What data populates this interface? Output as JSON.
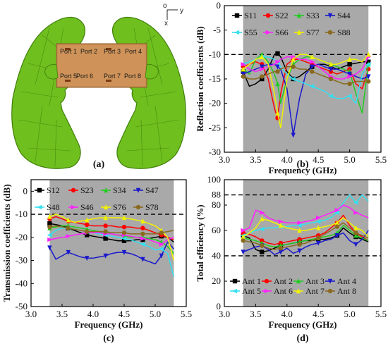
{
  "panel_a": {
    "label": "(a)",
    "ports": [
      "Port 1",
      "Port 2",
      "Port 3",
      "Port 4",
      "Port 5",
      "Port 6",
      "Port 7",
      "Port 8"
    ],
    "axes_labels": [
      "o",
      "y",
      "x"
    ]
  },
  "colors": {
    "S11": "#000000",
    "S22": "#ff0000",
    "S33": "#22cc22",
    "S44": "#1a1acc",
    "S55": "#33e0f0",
    "S66": "#ff22ff",
    "S77": "#f2f200",
    "S88": "#8a6a1f",
    "shade": "#a9a9a9",
    "hand": "#6fbf1e",
    "hand_edge": "#3f7e0c",
    "board": "#c98a4f"
  },
  "chart_data": [
    {
      "id": "b",
      "label": "(b)",
      "type": "line",
      "xlabel": "Frequency (GHz)",
      "ylabel": "Reflection coefficients (dB)",
      "xlim": [
        3.0,
        5.5
      ],
      "ylim": [
        -30,
        0
      ],
      "xticks": [
        3.0,
        3.5,
        4.0,
        4.5,
        5.0,
        5.5
      ],
      "xtick_labels": [
        "3.0",
        "3.5",
        "4.0",
        "4.5",
        "5.0",
        "5.5"
      ],
      "yticks": [
        -30,
        -25,
        -20,
        -15,
        -10,
        -5,
        0
      ],
      "ytick_labels": [
        "-30",
        "-25",
        "-20",
        "-15",
        "-10",
        "-5",
        "0"
      ],
      "shaded_band": [
        3.3,
        5.3
      ],
      "ref_line": -10,
      "legend": [
        "S11",
        "S22",
        "S33",
        "S44",
        "S55",
        "S66",
        "S77",
        "S88"
      ],
      "x": [
        3.3,
        3.4,
        3.5,
        3.6,
        3.7,
        3.8,
        3.85,
        3.9,
        4.0,
        4.1,
        4.2,
        4.3,
        4.4,
        4.5,
        4.6,
        4.7,
        4.8,
        4.9,
        5.0,
        5.1,
        5.2,
        5.3
      ],
      "series": [
        {
          "name": "S11",
          "values": [
            -13.5,
            -16.5,
            -16.0,
            -15.0,
            -13.0,
            -10.0,
            -9.8,
            -10.5,
            -13.5,
            -15.0,
            -14.5,
            -13.5,
            -12.5,
            -12.0,
            -12.0,
            -12.5,
            -13.0,
            -12.5,
            -12.0,
            -11.8,
            -11.5,
            -11.5
          ]
        },
        {
          "name": "S22",
          "values": [
            -12.5,
            -12.0,
            -11.5,
            -12.0,
            -15.0,
            -21.0,
            -23.0,
            -18.0,
            -12.0,
            -11.0,
            -11.0,
            -11.5,
            -12.0,
            -12.5,
            -13.0,
            -13.5,
            -14.0,
            -13.5,
            -13.0,
            -16.0,
            -17.0,
            -13.0
          ]
        },
        {
          "name": "S33",
          "values": [
            -13.0,
            -14.0,
            -11.0,
            -10.0,
            -11.5,
            -14.0,
            -16.0,
            -20.0,
            -15.0,
            -12.0,
            -11.0,
            -10.5,
            -10.5,
            -11.0,
            -11.5,
            -12.0,
            -12.5,
            -13.0,
            -13.5,
            -18.0,
            -22.0,
            -12.0
          ]
        },
        {
          "name": "S44",
          "values": [
            -14.0,
            -13.5,
            -13.0,
            -12.5,
            -12.0,
            -12.0,
            -12.5,
            -13.0,
            -17.0,
            -26.5,
            -19.0,
            -14.0,
            -12.5,
            -12.0,
            -12.5,
            -13.0,
            -13.0,
            -13.5,
            -14.0,
            -14.5,
            -15.0,
            -14.5
          ]
        },
        {
          "name": "S55",
          "values": [
            -12.0,
            -11.5,
            -11.0,
            -10.5,
            -10.5,
            -11.0,
            -11.5,
            -12.5,
            -14.0,
            -15.0,
            -15.5,
            -16.0,
            -16.5,
            -17.0,
            -17.5,
            -18.5,
            -19.0,
            -19.0,
            -18.5,
            -20.0,
            -14.0,
            -12.0
          ]
        },
        {
          "name": "S66",
          "values": [
            -12.0,
            -13.0,
            -13.5,
            -13.0,
            -12.5,
            -12.0,
            -11.5,
            -11.0,
            -10.5,
            -10.5,
            -11.0,
            -11.0,
            -11.5,
            -12.5,
            -13.5,
            -14.5,
            -15.0,
            -15.0,
            -14.5,
            -14.0,
            -13.0,
            -10.5
          ]
        },
        {
          "name": "S77",
          "values": [
            -13.0,
            -12.0,
            -11.0,
            -10.5,
            -12.0,
            -18.0,
            -22.0,
            -25.0,
            -15.0,
            -11.0,
            -10.0,
            -10.0,
            -10.5,
            -11.0,
            -11.5,
            -12.0,
            -12.0,
            -11.5,
            -11.0,
            -11.0,
            -11.5,
            -10.0
          ]
        },
        {
          "name": "S88",
          "values": [
            -14.5,
            -15.0,
            -15.0,
            -14.5,
            -14.0,
            -13.5,
            -13.5,
            -13.0,
            -12.5,
            -12.5,
            -13.0,
            -13.0,
            -13.5,
            -14.0,
            -14.5,
            -15.0,
            -15.5,
            -16.0,
            -16.0,
            -15.5,
            -15.5,
            -15.5
          ]
        }
      ]
    },
    {
      "id": "c",
      "label": "(c)",
      "type": "line",
      "xlabel": "Frequency (GHz)",
      "ylabel": "Transmission coefficients (dB)",
      "xlim": [
        3.0,
        5.5
      ],
      "ylim": [
        -50,
        5
      ],
      "xticks": [
        3.0,
        3.5,
        4.0,
        4.5,
        5.0,
        5.5
      ],
      "xtick_labels": [
        "3.0",
        "3.5",
        "4.0",
        "4.5",
        "5.0",
        "5.5"
      ],
      "yticks": [
        -50,
        -40,
        -30,
        -20,
        -10,
        0
      ],
      "ytick_labels": [
        "-50",
        "-40",
        "-30",
        "-20",
        "-10",
        "0"
      ],
      "shaded_band": [
        3.3,
        5.3
      ],
      "ref_line": -10,
      "legend": [
        "S12",
        "S23",
        "S34",
        "S47",
        "S48",
        "S46",
        "S76",
        "S78"
      ],
      "x": [
        3.3,
        3.4,
        3.5,
        3.6,
        3.7,
        3.8,
        3.9,
        4.0,
        4.1,
        4.2,
        4.3,
        4.4,
        4.5,
        4.6,
        4.7,
        4.8,
        4.9,
        5.0,
        5.1,
        5.2,
        5.3
      ],
      "series": [
        {
          "name": "S12",
          "values": [
            -14.0,
            -14.5,
            -15.0,
            -16.0,
            -17.0,
            -18.0,
            -19.0,
            -19.5,
            -20.0,
            -20.5,
            -21.0,
            -21.5,
            -21.5,
            -21.5,
            -21.0,
            -21.0,
            -20.5,
            -20.0,
            -19.5,
            -20.0,
            -22.0
          ]
        },
        {
          "name": "S23",
          "values": [
            -12.0,
            -11.0,
            -12.0,
            -13.0,
            -13.5,
            -14.0,
            -14.5,
            -15.0,
            -15.0,
            -15.0,
            -15.0,
            -15.5,
            -15.5,
            -15.5,
            -16.0,
            -16.0,
            -17.0,
            -18.0,
            -19.0,
            -20.0,
            -21.0
          ]
        },
        {
          "name": "S34",
          "values": [
            -16.0,
            -15.5,
            -15.0,
            -15.0,
            -15.5,
            -16.0,
            -16.5,
            -17.0,
            -17.5,
            -18.0,
            -18.5,
            -19.0,
            -19.5,
            -20.0,
            -20.0,
            -20.0,
            -20.5,
            -21.0,
            -22.0,
            -24.0,
            -27.0
          ]
        },
        {
          "name": "S47",
          "values": [
            -24.5,
            -29.5,
            -28.0,
            -26.5,
            -27.5,
            -28.5,
            -29.0,
            -29.0,
            -28.5,
            -28.0,
            -27.0,
            -26.5,
            -26.5,
            -27.0,
            -28.0,
            -29.5,
            -30.5,
            -31.5,
            -28.0,
            -22.0,
            -25.0
          ]
        },
        {
          "name": "S48",
          "values": [
            -19.0,
            -17.0,
            -16.0,
            -16.0,
            -16.5,
            -17.0,
            -17.5,
            -18.0,
            -18.5,
            -19.0,
            -19.5,
            -20.0,
            -20.5,
            -21.0,
            -22.0,
            -23.0,
            -24.0,
            -25.5,
            -25.0,
            -27.0,
            -37.0
          ]
        },
        {
          "name": "S46",
          "values": [
            -21.0,
            -20.5,
            -20.0,
            -19.5,
            -19.0,
            -18.5,
            -18.0,
            -18.0,
            -18.0,
            -18.5,
            -18.5,
            -19.0,
            -19.0,
            -19.5,
            -20.0,
            -20.5,
            -21.0,
            -22.0,
            -23.0,
            -21.0,
            -20.0
          ]
        },
        {
          "name": "S76",
          "values": [
            -11.0,
            -10.0,
            -11.0,
            -12.5,
            -13.5,
            -13.0,
            -12.5,
            -12.0,
            -11.5,
            -11.5,
            -11.5,
            -11.5,
            -11.5,
            -12.0,
            -12.5,
            -13.0,
            -14.0,
            -15.0,
            -17.0,
            -20.0,
            -30.0
          ]
        },
        {
          "name": "S78",
          "values": [
            -15.5,
            -15.0,
            -15.5,
            -16.0,
            -16.5,
            -17.0,
            -17.5,
            -17.5,
            -17.5,
            -17.5,
            -18.0,
            -18.0,
            -18.0,
            -18.5,
            -18.5,
            -18.5,
            -18.5,
            -18.5,
            -18.0,
            -17.5,
            -17.0
          ]
        }
      ]
    },
    {
      "id": "d",
      "label": "(d)",
      "type": "line",
      "xlabel": "Frequency (GHz)",
      "ylabel": "Total efficiency (%)",
      "xlim": [
        3.0,
        5.5
      ],
      "ylim": [
        0,
        100
      ],
      "xticks": [
        3.0,
        3.5,
        4.0,
        4.5,
        5.0,
        5.5
      ],
      "xtick_labels": [
        "3.0",
        "3.5",
        "4.0",
        "4.5",
        "5.0",
        "5.5"
      ],
      "yticks": [
        0,
        20,
        40,
        60,
        80,
        88,
        100
      ],
      "ytick_labels": [
        "0",
        "20",
        "40",
        "60",
        "80",
        "88",
        "100"
      ],
      "shaded_band": [
        3.3,
        5.3
      ],
      "ref_lines": [
        88,
        40
      ],
      "legend": [
        "Ant 1",
        "Ant 2",
        "Ant 3",
        "Ant 4",
        "Ant 5",
        "Ant 6",
        "Ant 7",
        "Ant 8"
      ],
      "x": [
        3.3,
        3.4,
        3.5,
        3.6,
        3.7,
        3.8,
        3.9,
        4.0,
        4.1,
        4.2,
        4.3,
        4.4,
        4.5,
        4.6,
        4.7,
        4.8,
        4.9,
        5.0,
        5.1,
        5.2,
        5.3
      ],
      "series": [
        {
          "name": "Ant 1",
          "values": [
            56,
            54,
            45,
            43,
            44,
            46,
            48,
            49,
            50,
            51,
            52,
            52,
            53,
            53,
            54,
            56,
            62,
            58,
            55,
            53,
            51
          ]
        },
        {
          "name": "Ant 2",
          "values": [
            58,
            57,
            55,
            52,
            50,
            49,
            50,
            51,
            52,
            53,
            54,
            55,
            56,
            58,
            62,
            66,
            72,
            64,
            58,
            55,
            52
          ]
        },
        {
          "name": "Ant 3",
          "values": [
            54,
            53,
            52,
            50,
            48,
            47,
            48,
            49,
            50,
            51,
            52,
            53,
            54,
            55,
            56,
            58,
            64,
            60,
            56,
            54,
            52
          ]
        },
        {
          "name": "Ant 4",
          "values": [
            43,
            45,
            47,
            48,
            45,
            41,
            43,
            46,
            42,
            44,
            47,
            49,
            50,
            52,
            53,
            56,
            58,
            52,
            49,
            53,
            60
          ]
        },
        {
          "name": "Ant 5",
          "values": [
            56,
            58,
            60,
            61,
            62,
            62,
            63,
            63,
            64,
            64,
            65,
            66,
            67,
            68,
            70,
            74,
            82,
            88,
            82,
            88,
            83
          ]
        },
        {
          "name": "Ant 6",
          "values": [
            60,
            62,
            76,
            74,
            70,
            68,
            67,
            66,
            66,
            66,
            67,
            68,
            70,
            72,
            74,
            76,
            80,
            78,
            74,
            72,
            70
          ]
        },
        {
          "name": "Ant 7",
          "values": [
            55,
            58,
            62,
            69,
            68,
            66,
            64,
            62,
            61,
            60,
            60,
            61,
            62,
            63,
            64,
            66,
            70,
            66,
            62,
            60,
            55
          ]
        },
        {
          "name": "Ant 8",
          "values": [
            52,
            51,
            50,
            48,
            46,
            45,
            46,
            47,
            48,
            49,
            50,
            52,
            54,
            57,
            60,
            63,
            66,
            62,
            58,
            56,
            54
          ]
        }
      ]
    }
  ]
}
